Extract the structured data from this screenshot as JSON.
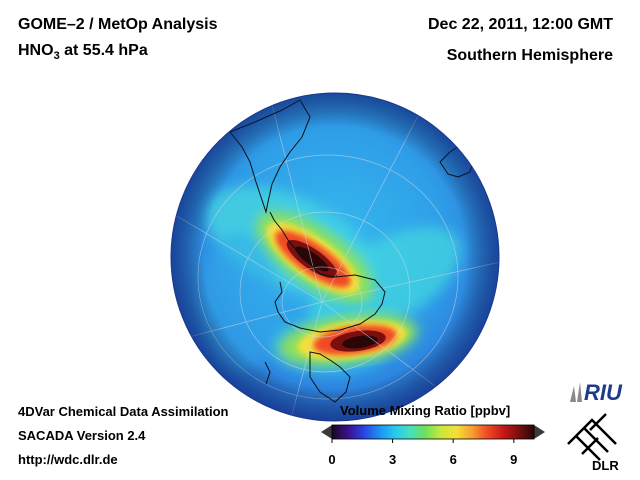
{
  "header": {
    "title": "GOME–2 / MetOp Analysis",
    "species_prefix": "HNO",
    "species_subscript": "3",
    "species_suffix": " at 55.4 hPa",
    "date": "Dec 22, 2011, 12:00 GMT",
    "hemisphere": "Southern Hemisphere"
  },
  "footer": {
    "method": "4DVar Chemical Data Assimilation",
    "version": "SACADA Version 2.4",
    "url": "http://wdc.dlr.de"
  },
  "colorbar": {
    "label": "Volume Mixing Ratio [ppbv]",
    "min": 0,
    "max": 10,
    "ticks": [
      0,
      3,
      6,
      9
    ],
    "tick_labels": [
      "0",
      "3",
      "6",
      "9"
    ],
    "colors": [
      "#1a0a1a",
      "#3a0f8a",
      "#2a3fe0",
      "#1f8cf0",
      "#25c8f0",
      "#45e0c0",
      "#6ee05a",
      "#c8e83a",
      "#f5e03a",
      "#f7a030",
      "#f04a25",
      "#c81818",
      "#7a0f10",
      "#2a0606"
    ]
  },
  "logos": {
    "riu_text": "RIU",
    "dlr_text": "DLR"
  },
  "map": {
    "projection": "orthographic, south polar view",
    "field": "HNO3 volume mixing ratio",
    "background_color": "#2f9fe8",
    "maxima_ppbv": [
      10,
      10
    ]
  }
}
